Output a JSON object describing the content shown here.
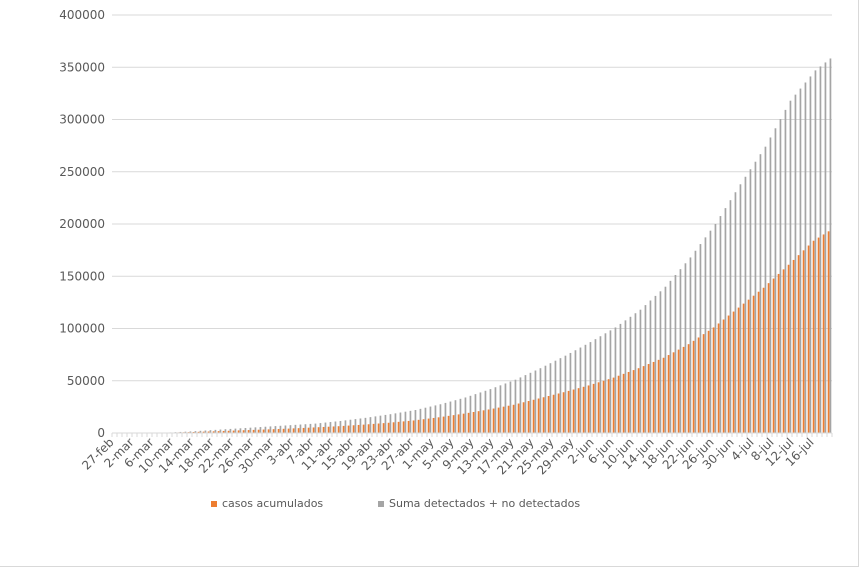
{
  "chart_data": {
    "type": "bar",
    "start_date": "2020-02-27",
    "end_date": "2020-07-19",
    "x_tick_labels": [
      "27-feb",
      "2-mar",
      "6-mar",
      "10-mar",
      "14-mar",
      "18-mar",
      "22-mar",
      "26-mar",
      "30-mar",
      "3-abr",
      "7-abr",
      "11-abr",
      "15-abr",
      "19-abr",
      "23-abr",
      "27-abr",
      "1-may",
      "5-may",
      "9-may",
      "13-may",
      "17-may",
      "21-may",
      "25-may",
      "29-may",
      "2-jun",
      "6-jun",
      "10-jun",
      "14-jun",
      "18-jun",
      "22-jun",
      "26-jun",
      "30-jun",
      "4-jul",
      "8-jul",
      "12-jul",
      "16-jul"
    ],
    "y_ticks": [
      0,
      50000,
      100000,
      150000,
      200000,
      250000,
      300000,
      350000,
      400000
    ],
    "y_tick_labels": [
      "0",
      "50000",
      "100000",
      "150000",
      "200000",
      "250000",
      "300000",
      "350000",
      "400000"
    ],
    "ylim": [
      0,
      400000
    ],
    "grid": true,
    "legend_position": "bottom",
    "series": [
      {
        "name": "casos acumulados",
        "color": "#ED7D31",
        "checkpoints": [
          [
            0,
            0
          ],
          [
            10,
            200
          ],
          [
            15,
            800
          ],
          [
            20,
            1600
          ],
          [
            25,
            2500
          ],
          [
            30,
            3300
          ],
          [
            35,
            4200
          ],
          [
            40,
            5300
          ],
          [
            45,
            6500
          ],
          [
            50,
            8000
          ],
          [
            55,
            9800
          ],
          [
            60,
            12000
          ],
          [
            65,
            15000
          ],
          [
            70,
            18500
          ],
          [
            75,
            22500
          ],
          [
            80,
            27000
          ],
          [
            85,
            33000
          ],
          [
            90,
            39000
          ],
          [
            95,
            45500
          ],
          [
            100,
            53000
          ],
          [
            105,
            62000
          ],
          [
            110,
            72000
          ],
          [
            115,
            85000
          ],
          [
            120,
            101000
          ],
          [
            125,
            120000
          ],
          [
            130,
            139000
          ],
          [
            135,
            161000
          ],
          [
            140,
            184000
          ],
          [
            145,
            199000
          ],
          [
            150,
            206000
          ],
          [
            155,
            210000
          ],
          [
            159,
            211000
          ],
          [
            160,
            212000
          ]
        ]
      },
      {
        "name": "Suma detectados + no detectados",
        "color": "#A5A5A5",
        "checkpoints": [
          [
            0,
            0
          ],
          [
            10,
            300
          ],
          [
            15,
            1500
          ],
          [
            20,
            3000
          ],
          [
            25,
            4500
          ],
          [
            30,
            6000
          ],
          [
            35,
            7500
          ],
          [
            40,
            9000
          ],
          [
            45,
            11500
          ],
          [
            50,
            14500
          ],
          [
            55,
            18000
          ],
          [
            60,
            22000
          ],
          [
            65,
            27500
          ],
          [
            70,
            34000
          ],
          [
            75,
            42000
          ],
          [
            80,
            51000
          ],
          [
            85,
            62000
          ],
          [
            90,
            74000
          ],
          [
            95,
            87000
          ],
          [
            100,
            101000
          ],
          [
            105,
            118000
          ],
          [
            110,
            140000
          ],
          [
            115,
            168000
          ],
          [
            120,
            200000
          ],
          [
            125,
            238000
          ],
          [
            130,
            274000
          ],
          [
            135,
            318000
          ],
          [
            140,
            347000
          ],
          [
            145,
            366000
          ],
          [
            150,
            374000
          ],
          [
            155,
            377000
          ],
          [
            160,
            377000
          ]
        ]
      }
    ]
  }
}
